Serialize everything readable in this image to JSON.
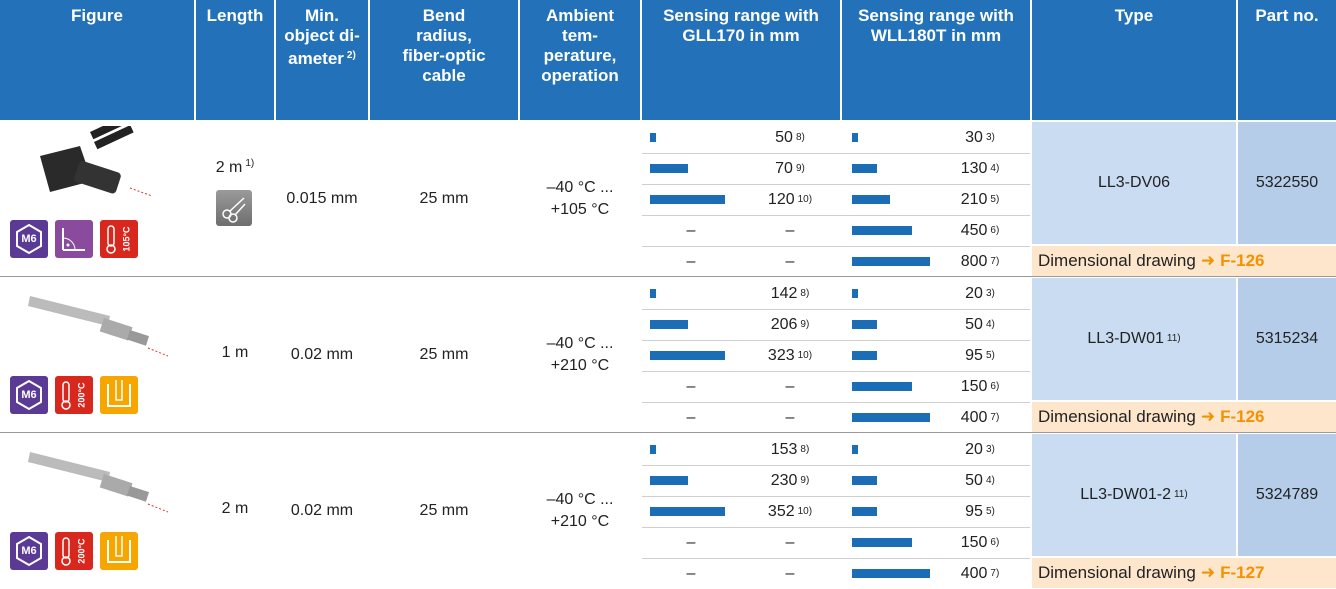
{
  "header": {
    "columns": [
      {
        "lines": [
          "Figure"
        ]
      },
      {
        "lines": [
          "Length"
        ]
      },
      {
        "lines": [
          "Min.",
          "object di-",
          "ameter"
        ],
        "note": "2)"
      },
      {
        "lines": [
          "Bend",
          "radius,",
          "fiber-optic",
          "cable"
        ]
      },
      {
        "lines": [
          "Ambient",
          "tem-",
          "perature,",
          "operation"
        ]
      },
      {
        "lines": [
          "Sensing range with",
          "GLL170 in mm"
        ]
      },
      {
        "lines": [
          "Sensing range with",
          "WLL180T in mm"
        ]
      },
      {
        "lines": [
          "Type"
        ]
      },
      {
        "lines": [
          "Part no."
        ]
      }
    ]
  },
  "products": [
    {
      "icons": [
        {
          "type": "hex",
          "label": "M6"
        },
        {
          "type": "angle"
        },
        {
          "type": "temp",
          "label": "105°C"
        }
      ],
      "length": "2 m",
      "length_note": "1)",
      "length_icon": "cut",
      "min_diameter": "0.015 mm",
      "bend_radius": "25 mm",
      "temperature": [
        "–40 °C ...",
        "+105 °C"
      ],
      "gll": [
        {
          "value": 50,
          "note": "8)"
        },
        {
          "value": 70,
          "note": "9)"
        },
        {
          "value": 120,
          "note": "10)"
        },
        {
          "bar": "–",
          "value": "–"
        },
        {
          "bar": "–",
          "value": "–"
        }
      ],
      "wll": [
        {
          "value": 30,
          "note": "3)"
        },
        {
          "value": 130,
          "note": "4)"
        },
        {
          "value": 210,
          "note": "5)"
        },
        {
          "value": 450,
          "note": "6)"
        },
        {
          "value": 800,
          "note": "7)"
        }
      ],
      "type": "LL3-DV06",
      "part_no": "5322550",
      "drawing": {
        "label": "Dimensional drawing",
        "arrow": "➜",
        "ref": "F-126"
      }
    },
    {
      "icons": [
        {
          "type": "hex",
          "label": "M6"
        },
        {
          "type": "temp",
          "label": "200°C"
        },
        {
          "type": "bath"
        }
      ],
      "length": "1 m",
      "min_diameter": "0.02 mm",
      "bend_radius": "25 mm",
      "temperature": [
        "–40 °C ...",
        "+210 °C"
      ],
      "gll": [
        {
          "value": 142,
          "note": "8)"
        },
        {
          "value": 206,
          "note": "9)"
        },
        {
          "value": 323,
          "note": "10)"
        },
        {
          "bar": "–",
          "value": "–"
        },
        {
          "bar": "–",
          "value": "–"
        }
      ],
      "wll": [
        {
          "value": 20,
          "note": "3)"
        },
        {
          "value": 50,
          "note": "4)"
        },
        {
          "value": 95,
          "note": "5)"
        },
        {
          "value": 150,
          "note": "6)"
        },
        {
          "value": 400,
          "note": "7)"
        }
      ],
      "type": "LL3-DW01",
      "type_note": "11)",
      "part_no": "5315234",
      "drawing": {
        "label": "Dimensional drawing",
        "arrow": "➜",
        "ref": "F-126"
      }
    },
    {
      "icons": [
        {
          "type": "hex",
          "label": "M6"
        },
        {
          "type": "temp",
          "label": "200°C"
        },
        {
          "type": "bath"
        }
      ],
      "length": "2 m",
      "min_diameter": "0.02 mm",
      "bend_radius": "25 mm",
      "temperature": [
        "–40 °C ...",
        "+210 °C"
      ],
      "gll": [
        {
          "value": 153,
          "note": "8)"
        },
        {
          "value": 230,
          "note": "9)"
        },
        {
          "value": 352,
          "note": "10)"
        },
        {
          "bar": "–",
          "value": "–"
        },
        {
          "bar": "–",
          "value": "–"
        }
      ],
      "wll": [
        {
          "value": 20,
          "note": "3)"
        },
        {
          "value": 50,
          "note": "4)"
        },
        {
          "value": 95,
          "note": "5)"
        },
        {
          "value": 150,
          "note": "6)"
        },
        {
          "value": 400,
          "note": "7)"
        }
      ],
      "type": "LL3-DW01-2",
      "type_note": "11)",
      "part_no": "5324789",
      "drawing": {
        "label": "Dimensional drawing",
        "arrow": "➜",
        "ref": "F-127"
      }
    }
  ]
}
